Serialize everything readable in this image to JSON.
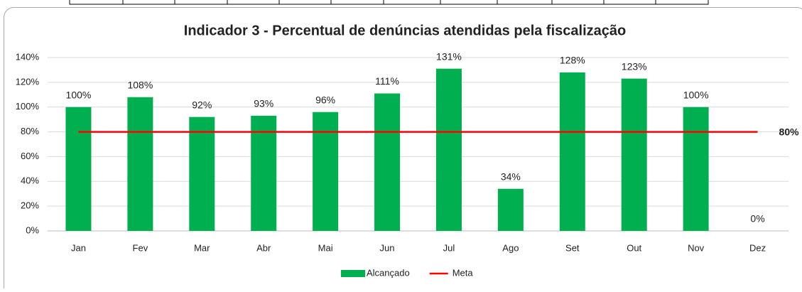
{
  "chart_data": {
    "type": "bar",
    "title": "Indicador 3 - Percentual de denúncias atendidas pela fiscalização",
    "categories": [
      "Jan",
      "Fev",
      "Mar",
      "Abr",
      "Mai",
      "Jun",
      "Jul",
      "Ago",
      "Set",
      "Out",
      "Nov",
      "Dez"
    ],
    "series": [
      {
        "name": "Alcançado",
        "type": "bar",
        "color": "#00b050",
        "values": [
          100,
          108,
          92,
          93,
          96,
          111,
          131,
          34,
          128,
          123,
          100,
          0
        ],
        "value_labels": [
          "100%",
          "108%",
          "92%",
          "93%",
          "96%",
          "111%",
          "131%",
          "34%",
          "128%",
          "123%",
          "100%",
          "0%"
        ]
      },
      {
        "name": "Meta",
        "type": "line",
        "color": "#ff0000",
        "values": [
          80,
          80,
          80,
          80,
          80,
          80,
          80,
          80,
          80,
          80,
          80,
          80
        ],
        "value_labels": [
          null,
          null,
          null,
          null,
          null,
          null,
          null,
          null,
          null,
          null,
          null,
          "80%"
        ]
      }
    ],
    "ylim": [
      0,
      140
    ],
    "yticks": [
      {
        "value": 0,
        "label": "0%"
      },
      {
        "value": 20,
        "label": "20%"
      },
      {
        "value": 40,
        "label": "40%"
      },
      {
        "value": 60,
        "label": "60%"
      },
      {
        "value": 80,
        "label": "80%"
      },
      {
        "value": 100,
        "label": "100%"
      },
      {
        "value": 120,
        "label": "120%"
      },
      {
        "value": 140,
        "label": "140%"
      }
    ],
    "grid": true,
    "legend": "bottom"
  }
}
